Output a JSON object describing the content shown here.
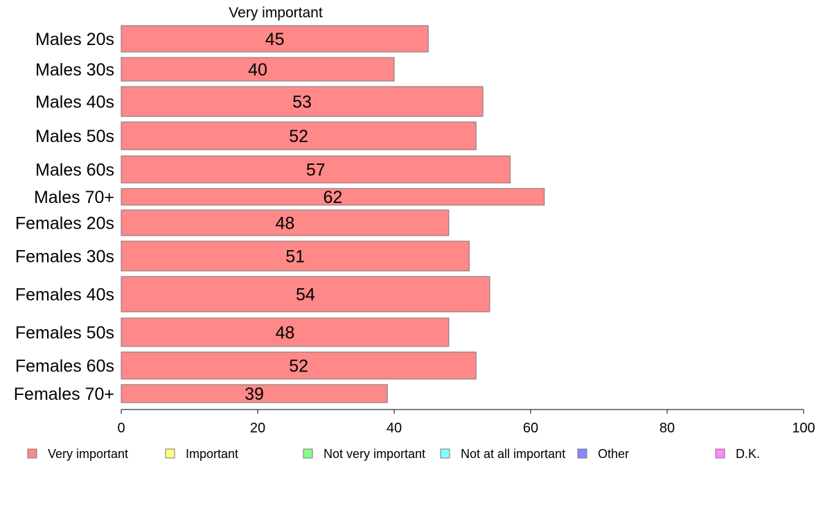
{
  "chart_data": {
    "type": "bar",
    "orientation": "horizontal",
    "header": "Very important",
    "categories": [
      "Males 20s",
      "Males 30s",
      "Males 40s",
      "Males 50s",
      "Males 60s",
      "Males 70+",
      "Females 20s",
      "Females 30s",
      "Females 40s",
      "Females 50s",
      "Females 60s",
      "Females 70+"
    ],
    "series": [
      {
        "name": "Very important",
        "color": "#ff8888",
        "values": [
          45,
          40,
          53,
          52,
          57,
          62,
          48,
          51,
          54,
          48,
          52,
          39
        ]
      }
    ],
    "xlim": [
      0,
      100
    ],
    "xticks": [
      0,
      20,
      40,
      60,
      80,
      100
    ],
    "legend": {
      "placement": "bottom",
      "items": [
        {
          "label": "Very important",
          "color": "#ff8888"
        },
        {
          "label": "Important",
          "color": "#ffff88"
        },
        {
          "label": "Not very important",
          "color": "#88ff88"
        },
        {
          "label": "Not at all important",
          "color": "#88ffff"
        },
        {
          "label": "Other",
          "color": "#8888ff"
        },
        {
          "label": "D.K.",
          "color": "#ff88ff"
        }
      ]
    },
    "grid": false
  }
}
